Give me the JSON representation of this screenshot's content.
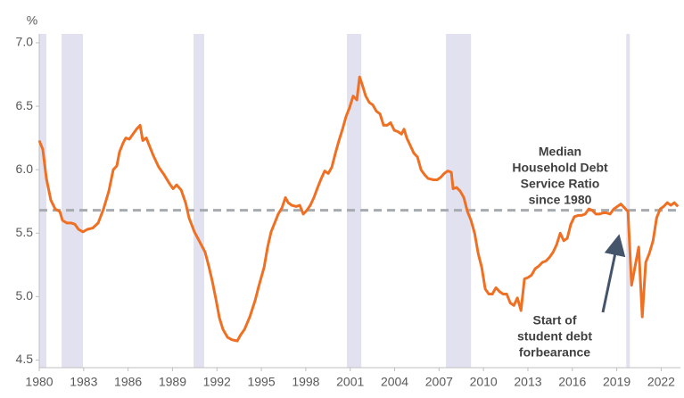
{
  "chart_data": {
    "type": "line",
    "y_axis_label": "%",
    "color": "#f07023",
    "x": [
      1980.0,
      1980.24,
      1980.48,
      1980.78,
      1981.08,
      1981.39,
      1981.57,
      1981.87,
      1982.17,
      1982.41,
      1982.65,
      1982.95,
      1983.25,
      1983.61,
      1983.98,
      1984.34,
      1984.7,
      1985.0,
      1985.24,
      1985.42,
      1985.66,
      1985.84,
      1986.08,
      1986.33,
      1986.57,
      1986.81,
      1986.99,
      1987.23,
      1987.47,
      1987.71,
      1988.07,
      1988.43,
      1988.8,
      1989.04,
      1989.28,
      1989.58,
      1989.88,
      1990.12,
      1990.48,
      1990.84,
      1991.2,
      1991.45,
      1991.69,
      1991.93,
      1992.17,
      1992.41,
      1992.71,
      1993.01,
      1993.37,
      1993.61,
      1993.86,
      1994.22,
      1994.58,
      1994.82,
      1995.18,
      1995.42,
      1995.66,
      1995.9,
      1996.14,
      1996.39,
      1996.63,
      1996.81,
      1997.05,
      1997.35,
      1997.59,
      1997.83,
      1998.07,
      1998.31,
      1998.55,
      1998.8,
      1999.04,
      1999.28,
      1999.52,
      1999.76,
      2000.0,
      2000.24,
      2000.48,
      2000.72,
      2000.96,
      2001.2,
      2001.45,
      2001.63,
      2001.81,
      2002.05,
      2002.29,
      2002.53,
      2002.77,
      2003.01,
      2003.25,
      2003.49,
      2003.73,
      2003.98,
      2004.22,
      2004.46,
      2004.64,
      2004.82,
      2005.06,
      2005.3,
      2005.54,
      2005.78,
      2006.02,
      2006.27,
      2006.63,
      2006.87,
      2007.11,
      2007.35,
      2007.59,
      2007.83,
      2007.95,
      2008.19,
      2008.43,
      2008.67,
      2008.92,
      2009.16,
      2009.4,
      2009.64,
      2009.88,
      2010.12,
      2010.36,
      2010.6,
      2010.84,
      2011.08,
      2011.33,
      2011.57,
      2011.81,
      2012.05,
      2012.29,
      2012.53,
      2012.77,
      2013.01,
      2013.25,
      2013.49,
      2013.73,
      2013.98,
      2014.22,
      2014.46,
      2014.7,
      2014.94,
      2015.18,
      2015.42,
      2015.66,
      2015.9,
      2016.14,
      2016.39,
      2016.63,
      2016.87,
      2017.11,
      2017.35,
      2017.59,
      2017.83,
      2018.07,
      2018.31,
      2018.55,
      2018.8,
      2019.04,
      2019.28,
      2019.52,
      2019.76,
      2020.0,
      2020.24,
      2020.48,
      2020.72,
      2020.96,
      2021.2,
      2021.45,
      2021.69,
      2021.93,
      2022.17,
      2022.41,
      2022.65,
      2022.89,
      2023.13
    ],
    "values": [
      6.23,
      6.16,
      5.93,
      5.76,
      5.69,
      5.67,
      5.6,
      5.58,
      5.58,
      5.57,
      5.53,
      5.51,
      5.53,
      5.54,
      5.58,
      5.69,
      5.83,
      6.0,
      6.03,
      6.14,
      6.21,
      6.25,
      6.24,
      6.28,
      6.32,
      6.35,
      6.23,
      6.25,
      6.18,
      6.11,
      6.02,
      5.96,
      5.89,
      5.85,
      5.88,
      5.84,
      5.74,
      5.62,
      5.51,
      5.43,
      5.35,
      5.24,
      5.12,
      4.98,
      4.83,
      4.74,
      4.68,
      4.66,
      4.65,
      4.7,
      4.74,
      4.84,
      4.97,
      5.08,
      5.23,
      5.39,
      5.51,
      5.58,
      5.65,
      5.7,
      5.78,
      5.74,
      5.72,
      5.71,
      5.72,
      5.65,
      5.68,
      5.72,
      5.78,
      5.86,
      5.93,
      5.99,
      5.97,
      6.02,
      6.13,
      6.23,
      6.32,
      6.42,
      6.49,
      6.58,
      6.55,
      6.73,
      6.67,
      6.58,
      6.53,
      6.51,
      6.46,
      6.44,
      6.35,
      6.35,
      6.37,
      6.31,
      6.3,
      6.28,
      6.32,
      6.25,
      6.19,
      6.13,
      6.1,
      6.0,
      5.96,
      5.93,
      5.92,
      5.92,
      5.94,
      5.97,
      5.99,
      5.98,
      5.85,
      5.86,
      5.83,
      5.78,
      5.67,
      5.6,
      5.5,
      5.34,
      5.23,
      5.06,
      5.02,
      5.02,
      5.07,
      5.04,
      5.02,
      5.02,
      4.95,
      4.93,
      4.99,
      4.89,
      5.14,
      5.15,
      5.17,
      5.22,
      5.24,
      5.27,
      5.28,
      5.31,
      5.35,
      5.41,
      5.5,
      5.44,
      5.46,
      5.57,
      5.63,
      5.64,
      5.64,
      5.65,
      5.69,
      5.68,
      5.65,
      5.65,
      5.66,
      5.66,
      5.65,
      5.69,
      5.71,
      5.73,
      5.7,
      5.67,
      5.09,
      5.24,
      5.39,
      4.84,
      5.27,
      5.34,
      5.44,
      5.62,
      5.69,
      5.71,
      5.74,
      5.72,
      5.74,
      5.71
    ],
    "shaded_ranges": [
      [
        1980.0,
        1980.48
      ],
      [
        1981.51,
        1982.95
      ],
      [
        1990.42,
        1991.14
      ],
      [
        2000.78,
        2001.75
      ],
      [
        2007.47,
        2009.16
      ],
      [
        2019.64,
        2019.88
      ]
    ],
    "reference_line": {
      "value": 5.68,
      "label": [
        "Median",
        "Household Debt",
        "Service Ratio",
        "since 1980"
      ]
    },
    "annotation": [
      "Start of",
      "student debt",
      "forbearance"
    ],
    "xlim": [
      1980,
      2023.3
    ],
    "xticks": [
      1980,
      1983,
      1986,
      1989,
      1992,
      1995,
      1998,
      2001,
      2004,
      2007,
      2010,
      2013,
      2016,
      2019,
      2022
    ],
    "ylim": [
      4.44,
      7.07
    ],
    "yticks": [
      4.5,
      {
        "value": 5.0,
        "label": "5.0"
      },
      5.5,
      {
        "value": 6.0,
        "label": "6.0"
      },
      6.5,
      {
        "value": 7.0,
        "label": "7.0"
      }
    ]
  }
}
